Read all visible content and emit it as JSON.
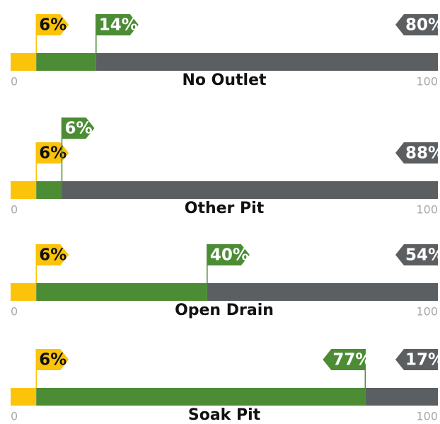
{
  "chart_data": [
    {
      "type": "bar",
      "stacked": true,
      "title": "No Outlet",
      "xlim": [
        0,
        100
      ],
      "xticks": [
        0,
        100
      ],
      "series": [
        {
          "color": "#fcc30b",
          "values": [
            6
          ],
          "value_labels": [
            "6%"
          ]
        },
        {
          "color": "#4c8c34",
          "values": [
            14
          ],
          "value_labels": [
            "14%"
          ]
        },
        {
          "color": "#5c5f62",
          "values": [
            80
          ],
          "value_labels": [
            "80%"
          ]
        }
      ]
    },
    {
      "type": "bar",
      "stacked": true,
      "title": "Other Pit",
      "xlim": [
        0,
        100
      ],
      "xticks": [
        0,
        100
      ],
      "series": [
        {
          "color": "#fcc30b",
          "values": [
            6
          ],
          "value_labels": [
            "6%"
          ]
        },
        {
          "color": "#4c8c34",
          "values": [
            6
          ],
          "value_labels": [
            "6%"
          ]
        },
        {
          "color": "#5c5f62",
          "values": [
            88
          ],
          "value_labels": [
            "88%"
          ]
        }
      ]
    },
    {
      "type": "bar",
      "stacked": true,
      "title": "Open Drain",
      "xlim": [
        0,
        100
      ],
      "xticks": [
        0,
        100
      ],
      "series": [
        {
          "color": "#fcc30b",
          "values": [
            6
          ],
          "value_labels": [
            "6%"
          ]
        },
        {
          "color": "#4c8c34",
          "values": [
            40
          ],
          "value_labels": [
            "40%"
          ]
        },
        {
          "color": "#5c5f62",
          "values": [
            54
          ],
          "value_labels": [
            "54%"
          ]
        }
      ]
    },
    {
      "type": "bar",
      "stacked": true,
      "title": "Soak Pit",
      "xlim": [
        0,
        100
      ],
      "xticks": [
        0,
        100
      ],
      "series": [
        {
          "color": "#fcc30b",
          "values": [
            6
          ],
          "value_labels": [
            "6%"
          ]
        },
        {
          "color": "#4c8c34",
          "values": [
            77
          ],
          "value_labels": [
            "77%"
          ]
        },
        {
          "color": "#5c5f62",
          "values": [
            17
          ],
          "value_labels": [
            "17%"
          ]
        }
      ]
    }
  ]
}
